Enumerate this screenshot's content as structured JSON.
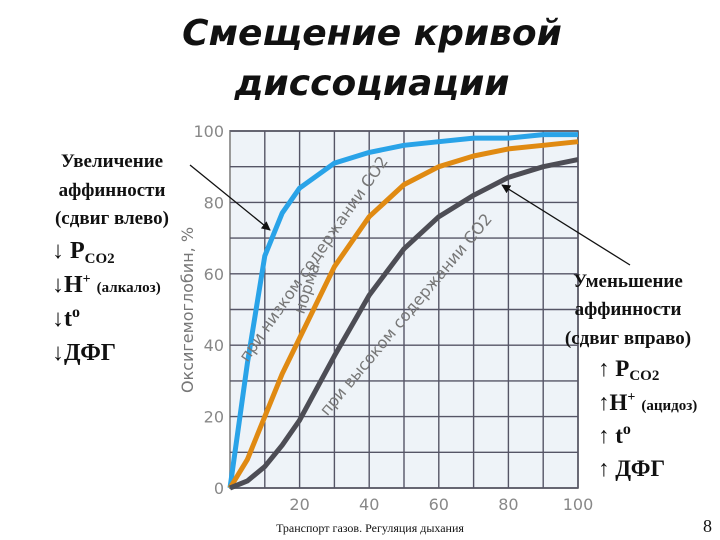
{
  "title_lines": [
    "Смещение кривой",
    "диссоциации"
  ],
  "left_panel": {
    "lines": [
      "Увеличение",
      "аффинности",
      "(сдвиг влево)"
    ],
    "factors": [
      {
        "text": "↓ P",
        "sub": "CO2"
      },
      {
        "text": "↓H",
        "sup": "+",
        "note": "(алкалоз)"
      },
      {
        "text": "↓t",
        "sup": "o"
      },
      {
        "text": "↓ДФГ"
      }
    ]
  },
  "right_panel": {
    "lines": [
      "Уменьшение",
      "аффинности",
      "(сдвиг вправо)"
    ],
    "factors": [
      {
        "text": "↑ P",
        "sub": "CO2"
      },
      {
        "text": "↑H",
        "sup": "+",
        "note": "(ацидоз)"
      },
      {
        "text": "↑ t",
        "sup": "o"
      },
      {
        "text": "↑ ДФГ"
      }
    ]
  },
  "footer": {
    "caption": "Транспорт газов. Регуляция дыхания",
    "page": "8"
  },
  "chart_data": {
    "type": "line",
    "y_label": "Оксигемоглобин, %",
    "annotations": [
      "при низком содержании CO2",
      "норма",
      "при высоком содержании CO2"
    ],
    "x": [
      0,
      5,
      10,
      15,
      20,
      30,
      40,
      50,
      60,
      70,
      80,
      90,
      100
    ],
    "series": [
      {
        "name": "при низком содержании CO2",
        "color": "#29a3e8",
        "values": [
          0,
          35,
          65,
          77,
          84,
          91,
          94,
          96,
          97,
          98,
          98,
          99,
          99
        ]
      },
      {
        "name": "норма",
        "color": "#e08a12",
        "values": [
          0,
          8,
          20,
          32,
          42,
          62,
          76,
          85,
          90,
          93,
          95,
          96,
          97
        ]
      },
      {
        "name": "при высоком содержании CO2",
        "color": "#4d4d55",
        "values": [
          0,
          2,
          6,
          12,
          19,
          37,
          54,
          67,
          76,
          82,
          87,
          90,
          92
        ]
      }
    ],
    "xlim": [
      0,
      100
    ],
    "ylim": [
      0,
      100
    ],
    "xticks": [
      20,
      40,
      60,
      80,
      100
    ],
    "yticks": [
      0,
      20,
      40,
      60,
      80,
      100
    ],
    "minor_xticks": [
      10,
      30,
      50,
      70,
      90
    ],
    "minor_yticks": [
      10,
      30,
      50,
      70,
      90
    ],
    "grid": true
  }
}
